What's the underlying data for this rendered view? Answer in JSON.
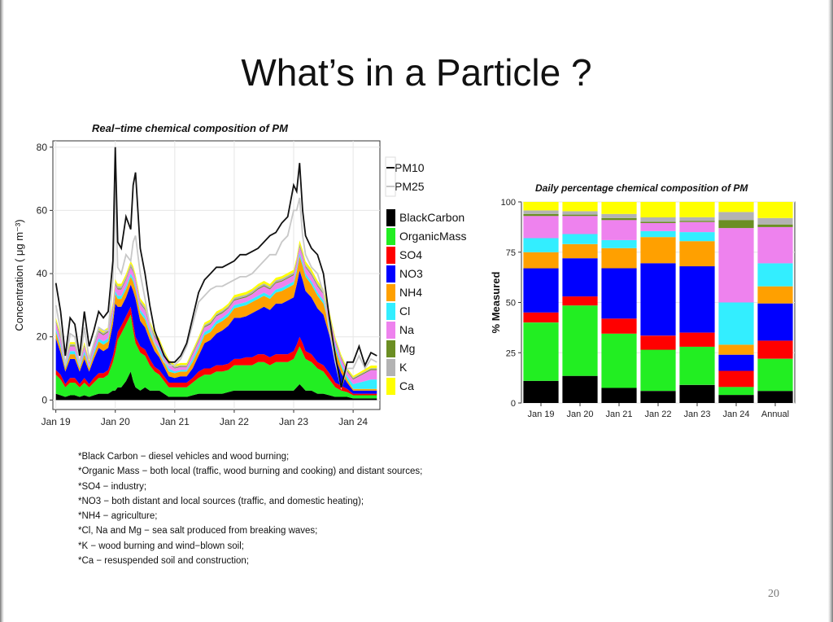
{
  "slide": {
    "title": "What’s in a Particle ?",
    "page_number": "20"
  },
  "colors": {
    "BlackCarbon": "#000000",
    "OrganicMass": "#22ee22",
    "SO4": "#ff0000",
    "NO3": "#0000ff",
    "NH4": "#ffa000",
    "Cl": "#33eeff",
    "Na": "#ee82ee",
    "Mg": "#6b8e23",
    "K": "#b3b3b3",
    "Ca": "#ffff00"
  },
  "chart_data": [
    {
      "type": "area",
      "title": "Real−time chemical composition of PM",
      "ylabel": "Concentration ( μg m⁻³)",
      "xlabel": "",
      "x_ticks": [
        "Jan 19",
        "Jan 20",
        "Jan 21",
        "Jan 22",
        "Jan 23",
        "Jan 24"
      ],
      "x_tick_days": [
        0,
        1,
        2,
        3,
        4,
        5
      ],
      "xlim": [
        -0.05,
        5.45
      ],
      "ylim": [
        -3,
        82
      ],
      "y_ticks": [
        0,
        20,
        40,
        60,
        80
      ],
      "grid": true,
      "legend_position": "right",
      "legend": [
        "PM10",
        "PM25",
        "BlackCarbon",
        "OrganicMass",
        "SO4",
        "NO3",
        "NH4",
        "Cl",
        "Na",
        "Mg",
        "K",
        "Ca"
      ],
      "x_days": [
        0,
        0.08,
        0.16,
        0.24,
        0.32,
        0.4,
        0.48,
        0.56,
        0.64,
        0.72,
        0.8,
        0.88,
        0.96,
        1.0,
        1.04,
        1.1,
        1.18,
        1.26,
        1.3,
        1.34,
        1.42,
        1.5,
        1.58,
        1.66,
        1.74,
        1.82,
        1.9,
        2.0,
        2.1,
        2.2,
        2.3,
        2.4,
        2.5,
        2.6,
        2.7,
        2.8,
        2.9,
        3.0,
        3.1,
        3.2,
        3.3,
        3.4,
        3.5,
        3.6,
        3.7,
        3.8,
        3.9,
        4.0,
        4.05,
        4.1,
        4.15,
        4.2,
        4.3,
        4.4,
        4.5,
        4.6,
        4.7,
        4.8,
        4.9,
        5.0,
        5.1,
        5.2,
        5.3,
        5.4
      ],
      "series": [
        {
          "name": "BlackCarbon",
          "values": [
            2,
            1.5,
            1,
            1.5,
            1.5,
            1,
            1.5,
            1,
            1.5,
            2,
            2,
            2,
            3,
            3,
            4,
            4,
            6,
            9,
            6,
            4,
            3,
            4,
            3,
            3,
            3,
            2,
            1,
            1,
            1,
            1,
            1.5,
            2,
            2,
            2,
            2,
            2,
            2.5,
            3,
            3,
            3,
            3,
            3,
            3,
            3,
            3,
            3,
            3,
            3,
            4,
            5,
            4,
            3,
            3,
            2,
            2,
            1.5,
            1,
            1,
            1,
            0.5,
            0.5,
            0.5,
            0.5,
            0.5
          ]
        },
        {
          "name": "OrganicMass",
          "values": [
            6,
            5,
            3,
            4,
            4,
            3,
            4,
            3,
            4,
            5,
            5,
            6,
            9,
            12,
            15,
            17,
            18,
            18,
            16,
            14,
            12,
            10,
            8,
            6,
            5,
            4,
            3,
            3,
            3,
            3,
            4,
            5,
            6,
            6,
            7,
            7,
            7,
            8,
            8,
            8,
            8,
            9,
            9,
            8,
            9,
            9,
            9,
            10,
            11,
            12,
            11,
            10,
            9,
            8,
            7,
            5,
            3,
            2,
            1.5,
            1,
            1,
            1,
            1,
            1
          ]
        },
        {
          "name": "SO4",
          "values": [
            1.5,
            1.5,
            1,
            1.5,
            1.5,
            1,
            1.5,
            1,
            1.5,
            1.5,
            1.5,
            1.5,
            2,
            2.5,
            2.5,
            2.5,
            2.5,
            2.5,
            2.5,
            2,
            2,
            2,
            2,
            1.5,
            1.5,
            1.5,
            1.5,
            1.5,
            1.5,
            1.5,
            1.5,
            2,
            2,
            2,
            2,
            2,
            2,
            2,
            2,
            2.5,
            2.5,
            2.5,
            2.5,
            2.5,
            2.5,
            2.5,
            2.5,
            2.5,
            2.5,
            3,
            3,
            2.5,
            2.5,
            2,
            2,
            2,
            1.5,
            1.5,
            1,
            0.5,
            0.5,
            0.5,
            0.5,
            0.5
          ]
        },
        {
          "name": "NO3",
          "values": [
            10,
            7,
            4,
            6,
            6,
            4,
            6,
            4,
            6,
            8,
            7,
            7,
            10,
            13,
            8,
            6,
            6,
            7,
            10,
            12,
            8,
            7,
            6,
            5,
            4,
            3,
            2,
            1.5,
            2,
            2,
            3,
            5,
            8,
            9,
            10,
            11,
            12,
            13,
            13,
            13,
            14,
            14,
            15,
            15,
            16,
            16,
            17,
            17,
            19,
            21,
            20,
            19,
            18,
            17,
            16,
            12,
            8,
            4,
            2,
            1,
            1,
            1,
            1,
            1
          ]
        },
        {
          "name": "NH4",
          "values": [
            2,
            1.5,
            1,
            1.5,
            1.5,
            1,
            1.5,
            1,
            1.5,
            2,
            2,
            2,
            2.5,
            3,
            2.5,
            2.5,
            2.5,
            2.5,
            3,
            3,
            2.5,
            2.5,
            2,
            2,
            2,
            1.5,
            1.5,
            1.5,
            1.5,
            1.5,
            2,
            2,
            2.5,
            2.5,
            3,
            3,
            3,
            3,
            3.5,
            3.5,
            3.5,
            3.5,
            3.5,
            3.5,
            3.5,
            4,
            4,
            4,
            4,
            4.5,
            4.5,
            4.5,
            4,
            4,
            3.5,
            3,
            2.5,
            2,
            1,
            0.5,
            0.5,
            0.5,
            0.5,
            0.5
          ]
        },
        {
          "name": "Cl",
          "values": [
            1,
            1,
            0.5,
            1,
            1,
            0.5,
            1,
            0.5,
            1,
            1,
            1,
            1,
            1,
            1,
            1,
            1,
            1,
            1,
            1,
            1,
            1,
            1,
            1,
            1,
            1,
            1,
            1,
            0.5,
            0.5,
            0.5,
            1,
            1,
            1,
            1,
            1,
            1,
            1,
            1,
            1,
            1,
            1,
            1,
            1,
            1,
            1,
            1,
            1,
            1,
            1,
            1,
            1,
            1,
            1,
            1,
            1,
            1,
            1,
            1,
            1,
            1.5,
            2,
            2.5,
            3,
            3
          ]
        },
        {
          "name": "Na",
          "values": [
            2,
            2,
            1,
            1.5,
            1.5,
            1,
            1.5,
            1,
            1.5,
            2,
            2,
            2,
            2,
            2,
            2,
            2,
            2,
            2,
            2,
            2,
            2,
            2,
            1.5,
            1.5,
            1.5,
            1.5,
            1.5,
            1,
            1,
            1,
            1.5,
            1.5,
            1.5,
            1.5,
            1.5,
            1.5,
            1.5,
            1.5,
            1.5,
            1.5,
            1.5,
            2,
            2,
            2,
            2,
            2,
            2,
            2,
            2,
            2,
            2,
            2,
            2,
            2,
            2,
            2,
            1.5,
            1.5,
            1.5,
            1.5,
            2,
            2.5,
            3,
            3
          ]
        },
        {
          "name": "Mg",
          "values": [
            0.3,
            0.3,
            0.2,
            0.3,
            0.3,
            0.2,
            0.3,
            0.2,
            0.3,
            0.3,
            0.3,
            0.3,
            0.3,
            0.3,
            0.3,
            0.3,
            0.3,
            0.3,
            0.3,
            0.3,
            0.3,
            0.3,
            0.3,
            0.3,
            0.3,
            0.3,
            0.3,
            0.2,
            0.2,
            0.2,
            0.3,
            0.3,
            0.3,
            0.3,
            0.3,
            0.3,
            0.3,
            0.3,
            0.3,
            0.3,
            0.3,
            0.3,
            0.3,
            0.3,
            0.3,
            0.3,
            0.3,
            0.3,
            0.3,
            0.3,
            0.3,
            0.3,
            0.3,
            0.3,
            0.3,
            0.3,
            0.3,
            0.3,
            0.3,
            0.3,
            0.3,
            0.3,
            0.3,
            0.3
          ]
        },
        {
          "name": "K",
          "values": [
            0.5,
            0.5,
            0.3,
            0.4,
            0.4,
            0.3,
            0.4,
            0.3,
            0.4,
            0.5,
            0.5,
            0.5,
            0.6,
            0.7,
            0.7,
            0.7,
            0.8,
            0.9,
            0.8,
            0.7,
            0.6,
            0.6,
            0.5,
            0.5,
            0.5,
            0.4,
            0.4,
            0.4,
            0.4,
            0.4,
            0.4,
            0.5,
            0.5,
            0.5,
            0.5,
            0.5,
            0.5,
            0.6,
            0.6,
            0.6,
            0.6,
            0.6,
            0.6,
            0.6,
            0.6,
            0.6,
            0.6,
            0.6,
            0.6,
            0.7,
            0.7,
            0.6,
            0.6,
            0.6,
            0.5,
            0.5,
            0.4,
            0.4,
            0.3,
            0.3,
            0.3,
            0.3,
            0.3,
            0.3
          ]
        },
        {
          "name": "Ca",
          "values": [
            0.7,
            0.7,
            0.5,
            0.6,
            0.6,
            0.5,
            0.6,
            0.5,
            0.6,
            0.7,
            0.7,
            0.7,
            0.8,
            0.8,
            0.8,
            0.8,
            0.8,
            0.8,
            0.8,
            0.8,
            0.8,
            0.8,
            0.7,
            0.7,
            0.7,
            0.6,
            0.6,
            0.6,
            0.6,
            0.6,
            0.6,
            0.7,
            0.7,
            0.7,
            0.7,
            0.7,
            0.7,
            0.8,
            0.8,
            0.8,
            0.8,
            0.8,
            0.8,
            0.8,
            0.8,
            0.8,
            0.8,
            0.8,
            0.8,
            1,
            1,
            1,
            1,
            0.9,
            0.9,
            0.8,
            0.7,
            0.6,
            0.5,
            0.5,
            0.6,
            0.7,
            0.8,
            0.8
          ]
        },
        {
          "name": "PM10",
          "values": [
            37,
            28,
            14,
            26,
            24,
            14,
            28,
            17,
            22,
            28,
            26,
            28,
            44,
            80,
            50,
            48,
            58,
            54,
            68,
            72,
            48,
            40,
            30,
            22,
            18,
            14,
            12,
            12,
            14,
            18,
            26,
            34,
            38,
            40,
            42,
            42,
            43,
            44,
            46,
            46,
            47,
            48,
            50,
            52,
            53,
            56,
            58,
            68,
            66,
            75,
            60,
            52,
            48,
            46,
            40,
            26,
            14,
            4,
            12,
            12,
            17,
            11,
            15,
            14
          ]
        },
        {
          "name": "PM25",
          "values": [
            30,
            22,
            11,
            21,
            20,
            11,
            23,
            13,
            18,
            23,
            22,
            22,
            38,
            68,
            42,
            40,
            46,
            44,
            50,
            52,
            40,
            32,
            24,
            18,
            15,
            12,
            11,
            11,
            13,
            17,
            24,
            31,
            33,
            35,
            36,
            36,
            37,
            38,
            39,
            39,
            40,
            42,
            44,
            46,
            46,
            50,
            52,
            60,
            60,
            64,
            52,
            46,
            42,
            40,
            34,
            22,
            12,
            4,
            10,
            10,
            14,
            10,
            13,
            12
          ]
        }
      ]
    },
    {
      "type": "bar",
      "stacked": true,
      "title": "Daily percentage chemical composition of PM",
      "ylabel": "% Measured",
      "xlabel": "",
      "categories": [
        "Jan 19",
        "Jan 20",
        "Jan 21",
        "Jan 22",
        "Jan 23",
        "Jan 24",
        "Annual"
      ],
      "ylim": [
        0,
        100
      ],
      "y_ticks": [
        0,
        25,
        50,
        75,
        100
      ],
      "grid": true,
      "series": [
        {
          "name": "BlackCarbon",
          "values": [
            11,
            13.5,
            7.5,
            6,
            9,
            4,
            6
          ]
        },
        {
          "name": "OrganicMass",
          "values": [
            29,
            35,
            27,
            20.5,
            19,
            4,
            16
          ]
        },
        {
          "name": "SO4",
          "values": [
            5,
            4.5,
            7.5,
            7,
            7,
            8,
            9
          ]
        },
        {
          "name": "NO3",
          "values": [
            22,
            19,
            25,
            36,
            33,
            8,
            18.5
          ]
        },
        {
          "name": "NH4",
          "values": [
            8,
            7,
            10,
            13,
            12.5,
            5,
            8.5
          ]
        },
        {
          "name": "Cl",
          "values": [
            7,
            5,
            4,
            3,
            4.5,
            21,
            11.5
          ]
        },
        {
          "name": "Na",
          "values": [
            11,
            9,
            10,
            4,
            5,
            37,
            18
          ]
        },
        {
          "name": "Mg",
          "values": [
            1,
            0.7,
            1,
            0.6,
            0.6,
            4,
            1.3
          ]
        },
        {
          "name": "K",
          "values": [
            1.8,
            1.7,
            2,
            2.2,
            1.8,
            4,
            3.2
          ]
        },
        {
          "name": "Ca",
          "values": [
            4.2,
            4.6,
            6,
            7.7,
            7.6,
            5,
            8
          ]
        }
      ]
    }
  ],
  "notes": [
    "*Black Carbon − diesel vehicles and wood burning;",
    "*Organic Mass − both local (traffic, wood burning and cooking) and distant sources;",
    "*SO4 − industry;",
    "*NO3 − both distant and local sources (traffic, and domestic heating);",
    "*NH4 − agriculture;",
    "*Cl, Na and Mg − sea salt produced from breaking waves;",
    "*K − wood burning and wind−blown soil;",
    "*Ca − resuspended soil and construction;"
  ]
}
